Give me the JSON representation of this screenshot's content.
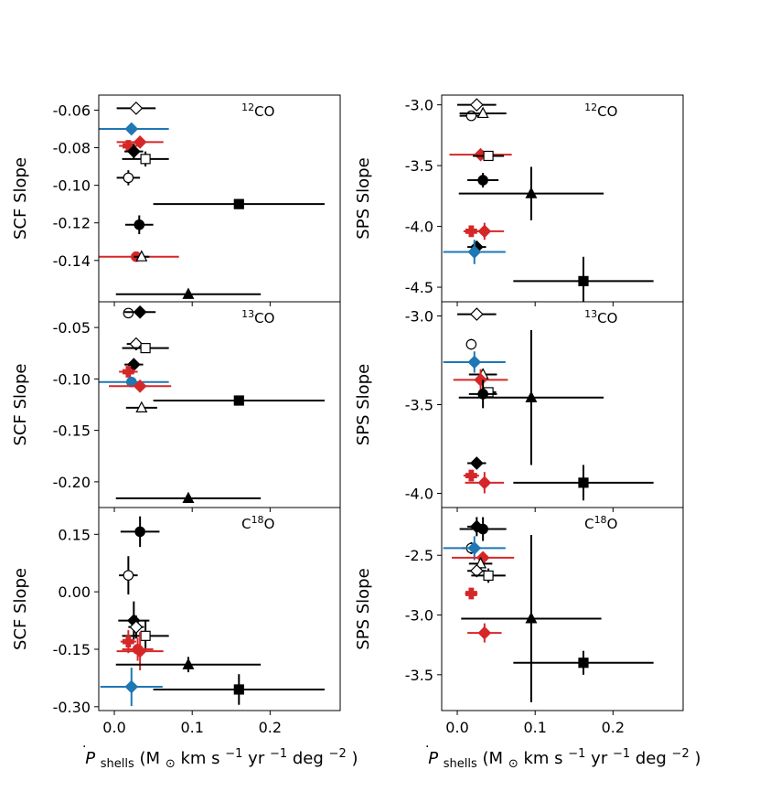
{
  "figure": {
    "xlabel": "Ṗshells (M⊙ km s⁻¹ yr⁻¹ deg⁻²)",
    "xlabel_main": "P",
    "xlabel_sub": "shells",
    "xlabel_units": " (M",
    "xlabel_sun": "⊙",
    "xlabel_rest1": " km s",
    "xlabel_rest2": " yr",
    "xlabel_rest3": " deg",
    "xlabel_exp_neg1a": "−1",
    "xlabel_exp_neg1b": "−1",
    "xlabel_exp_neg2": "−2",
    "xlabel_close": ")",
    "xlim": [
      -0.02,
      0.29
    ],
    "xticks": [
      0.0,
      0.1,
      0.2
    ],
    "xtick_labels": [
      "0.0",
      "0.1",
      "0.2"
    ]
  },
  "colors": {
    "black": "#000000",
    "blue": "#1f77b4",
    "red": "#d62728"
  },
  "chart_data": [
    {
      "type": "scatter",
      "id": "scf-12co",
      "column": 0,
      "row": 0,
      "ylabel": "SCF Slope",
      "title_sup": "12",
      "title_main": "CO",
      "ylim": [
        -0.162,
        -0.052
      ],
      "yticks": [
        -0.06,
        -0.08,
        -0.1,
        -0.12,
        -0.14
      ],
      "ytick_labels": [
        "-0.06",
        "-0.08",
        "-0.10",
        "-0.12",
        "-0.14"
      ],
      "points": [
        {
          "x": 0.028,
          "y": -0.059,
          "xerr": 0.025,
          "yerr": 0,
          "marker": "diamond",
          "filled": false,
          "color": "black"
        },
        {
          "x": 0.022,
          "y": -0.07,
          "xerr": 0.048,
          "yerr": 0,
          "marker": "diamond",
          "filled": true,
          "color": "blue"
        },
        {
          "x": 0.018,
          "y": -0.079,
          "xerr": 0.012,
          "yerr": 0,
          "marker": "plus",
          "filled": true,
          "color": "red"
        },
        {
          "x": 0.033,
          "y": -0.077,
          "xerr": 0.03,
          "yerr": 0,
          "marker": "diamond",
          "filled": true,
          "color": "red"
        },
        {
          "x": 0.025,
          "y": -0.082,
          "xerr": 0.012,
          "yerr": 0.004,
          "marker": "diamond",
          "filled": true,
          "color": "black"
        },
        {
          "x": 0.04,
          "y": -0.086,
          "xerr": 0.03,
          "yerr": 0.004,
          "marker": "square",
          "filled": false,
          "color": "black"
        },
        {
          "x": 0.018,
          "y": -0.096,
          "xerr": 0.015,
          "yerr": 0.004,
          "marker": "circle",
          "filled": false,
          "color": "black"
        },
        {
          "x": 0.032,
          "y": -0.121,
          "xerr": 0.018,
          "yerr": 0.005,
          "marker": "circle",
          "filled": true,
          "color": "black"
        },
        {
          "x": 0.16,
          "y": -0.11,
          "xerr": 0.11,
          "yerr": 0,
          "marker": "square",
          "filled": true,
          "color": "black"
        },
        {
          "x": 0.028,
          "y": -0.138,
          "xerr": 0.055,
          "yerr": 0,
          "marker": "circle",
          "filled": true,
          "color": "red"
        },
        {
          "x": 0.035,
          "y": -0.138,
          "xerr": 0.01,
          "yerr": 0,
          "marker": "triangle",
          "filled": false,
          "color": "black"
        },
        {
          "x": 0.095,
          "y": -0.158,
          "xerr": 0.093,
          "yerr": 0,
          "marker": "triangle",
          "filled": true,
          "color": "black"
        }
      ]
    },
    {
      "type": "scatter",
      "id": "scf-13co",
      "column": 0,
      "row": 1,
      "ylabel": "SCF Slope",
      "title_sup": "13",
      "title_main": "CO",
      "ylim": [
        -0.225,
        -0.025
      ],
      "yticks": [
        -0.05,
        -0.1,
        -0.15,
        -0.2
      ],
      "ytick_labels": [
        "-0.05",
        "-0.10",
        "-0.15",
        "-0.20"
      ],
      "points": [
        {
          "x": 0.018,
          "y": -0.036,
          "xerr": 0.006,
          "yerr": 0,
          "marker": "circle",
          "filled": false,
          "color": "black"
        },
        {
          "x": 0.033,
          "y": -0.035,
          "xerr": 0.02,
          "yerr": 0.003,
          "marker": "diamond",
          "filled": true,
          "color": "black"
        },
        {
          "x": 0.028,
          "y": -0.066,
          "xerr": 0.012,
          "yerr": 0,
          "marker": "diamond",
          "filled": false,
          "color": "black"
        },
        {
          "x": 0.04,
          "y": -0.07,
          "xerr": 0.03,
          "yerr": 0,
          "marker": "square",
          "filled": false,
          "color": "black"
        },
        {
          "x": 0.025,
          "y": -0.086,
          "xerr": 0.012,
          "yerr": 0.004,
          "marker": "diamond",
          "filled": true,
          "color": "black"
        },
        {
          "x": 0.018,
          "y": -0.093,
          "xerr": 0.012,
          "yerr": 0.004,
          "marker": "plus",
          "filled": true,
          "color": "red"
        },
        {
          "x": 0.022,
          "y": -0.103,
          "xerr": 0.048,
          "yerr": 0.004,
          "marker": "circle",
          "filled": true,
          "color": "blue"
        },
        {
          "x": 0.033,
          "y": -0.107,
          "xerr": 0.04,
          "yerr": 0,
          "marker": "diamond",
          "filled": true,
          "color": "red"
        },
        {
          "x": 0.035,
          "y": -0.128,
          "xerr": 0.02,
          "yerr": 0,
          "marker": "triangle",
          "filled": false,
          "color": "black"
        },
        {
          "x": 0.16,
          "y": -0.121,
          "xerr": 0.11,
          "yerr": 0,
          "marker": "square",
          "filled": true,
          "color": "black"
        },
        {
          "x": 0.095,
          "y": -0.216,
          "xerr": 0.093,
          "yerr": 0,
          "marker": "triangle",
          "filled": true,
          "color": "black"
        }
      ]
    },
    {
      "type": "scatter",
      "id": "scf-c18o",
      "column": 0,
      "row": 2,
      "ylabel": "SCF Slope",
      "title_pre": "C",
      "title_sup": "18",
      "title_main": "O",
      "ylim": [
        -0.31,
        0.22
      ],
      "yticks": [
        0.15,
        0.0,
        -0.15,
        -0.3
      ],
      "ytick_labels": [
        "0.15",
        "0.00",
        "-0.15",
        "-0.30"
      ],
      "points": [
        {
          "x": 0.033,
          "y": 0.157,
          "xerr": 0.025,
          "yerr": 0.04,
          "marker": "circle",
          "filled": true,
          "color": "black"
        },
        {
          "x": 0.018,
          "y": 0.043,
          "xerr": 0.012,
          "yerr": 0.05,
          "marker": "circle",
          "filled": false,
          "color": "black"
        },
        {
          "x": 0.025,
          "y": -0.075,
          "xerr": 0.02,
          "yerr": 0.05,
          "marker": "diamond",
          "filled": true,
          "color": "black"
        },
        {
          "x": 0.028,
          "y": -0.092,
          "xerr": 0.01,
          "yerr": 0.03,
          "marker": "diamond",
          "filled": false,
          "color": "black"
        },
        {
          "x": 0.04,
          "y": -0.115,
          "xerr": 0.03,
          "yerr": 0.04,
          "marker": "square",
          "filled": false,
          "color": "black"
        },
        {
          "x": 0.018,
          "y": -0.13,
          "xerr": 0.01,
          "yerr": 0.03,
          "marker": "plus",
          "filled": true,
          "color": "red"
        },
        {
          "x": 0.033,
          "y": -0.155,
          "xerr": 0.03,
          "yerr": 0.05,
          "marker": "diamond",
          "filled": true,
          "color": "red"
        },
        {
          "x": 0.03,
          "y": -0.15,
          "xerr": 0.02,
          "yerr": 0.03,
          "marker": "circle",
          "filled": true,
          "color": "red"
        },
        {
          "x": 0.095,
          "y": -0.19,
          "xerr": 0.093,
          "yerr": 0.02,
          "marker": "triangle",
          "filled": true,
          "color": "black"
        },
        {
          "x": 0.022,
          "y": -0.248,
          "xerr": 0.04,
          "yerr": 0.05,
          "marker": "diamond",
          "filled": true,
          "color": "blue"
        },
        {
          "x": 0.16,
          "y": -0.255,
          "xerr": 0.11,
          "yerr": 0.04,
          "marker": "square",
          "filled": true,
          "color": "black"
        }
      ]
    },
    {
      "type": "scatter",
      "id": "sps-12co",
      "column": 1,
      "row": 0,
      "ylabel": "SPS Slope",
      "title_sup": "12",
      "title_main": "CO",
      "ylim": [
        -4.62,
        -2.92
      ],
      "yticks": [
        -3.0,
        -3.5,
        -4.0,
        -4.5
      ],
      "ytick_labels": [
        "-3.0",
        "-3.5",
        "-4.0",
        "-4.5"
      ],
      "points": [
        {
          "x": 0.025,
          "y": -3.0,
          "xerr": 0.025,
          "yerr": 0,
          "marker": "diamond",
          "filled": false,
          "color": "black"
        },
        {
          "x": 0.018,
          "y": -3.09,
          "xerr": 0.015,
          "yerr": 0,
          "marker": "circle",
          "filled": false,
          "color": "black"
        },
        {
          "x": 0.033,
          "y": -3.07,
          "xerr": 0.03,
          "yerr": 0,
          "marker": "triangle",
          "filled": false,
          "color": "black"
        },
        {
          "x": 0.03,
          "y": -3.41,
          "xerr": 0.04,
          "yerr": 0.03,
          "marker": "diamond",
          "filled": true,
          "color": "red"
        },
        {
          "x": 0.04,
          "y": -3.42,
          "xerr": 0.02,
          "yerr": 0,
          "marker": "square",
          "filled": false,
          "color": "black"
        },
        {
          "x": 0.033,
          "y": -3.62,
          "xerr": 0.02,
          "yerr": 0.06,
          "marker": "circle",
          "filled": true,
          "color": "black"
        },
        {
          "x": 0.095,
          "y": -3.73,
          "xerr": 0.093,
          "yerr": 0.22,
          "marker": "triangle",
          "filled": true,
          "color": "black"
        },
        {
          "x": 0.018,
          "y": -4.04,
          "xerr": 0.01,
          "yerr": 0.04,
          "marker": "plus",
          "filled": true,
          "color": "red"
        },
        {
          "x": 0.035,
          "y": -4.04,
          "xerr": 0.025,
          "yerr": 0.07,
          "marker": "diamond",
          "filled": true,
          "color": "red"
        },
        {
          "x": 0.025,
          "y": -4.17,
          "xerr": 0.012,
          "yerr": 0.05,
          "marker": "diamond",
          "filled": true,
          "color": "black"
        },
        {
          "x": 0.022,
          "y": -4.21,
          "xerr": 0.04,
          "yerr": 0.1,
          "marker": "diamond",
          "filled": true,
          "color": "blue"
        },
        {
          "x": 0.162,
          "y": -4.45,
          "xerr": 0.09,
          "yerr": 0.2,
          "marker": "square",
          "filled": true,
          "color": "black"
        }
      ]
    },
    {
      "type": "scatter",
      "id": "sps-13co",
      "column": 1,
      "row": 1,
      "ylabel": "SPS Slope",
      "title_sup": "13",
      "title_main": "CO",
      "ylim": [
        -4.08,
        -2.92
      ],
      "yticks": [
        -3.0,
        -3.5,
        -4.0
      ],
      "ytick_labels": [
        "-3.0",
        "-3.5",
        "-4.0"
      ],
      "points": [
        {
          "x": 0.025,
          "y": -2.99,
          "xerr": 0.025,
          "yerr": 0,
          "marker": "diamond",
          "filled": false,
          "color": "black"
        },
        {
          "x": 0.018,
          "y": -3.16,
          "xerr": 0.006,
          "yerr": 0.03,
          "marker": "circle",
          "filled": false,
          "color": "black"
        },
        {
          "x": 0.022,
          "y": -3.26,
          "xerr": 0.04,
          "yerr": 0.06,
          "marker": "diamond",
          "filled": true,
          "color": "blue"
        },
        {
          "x": 0.033,
          "y": -3.33,
          "xerr": 0.018,
          "yerr": 0.03,
          "marker": "triangle",
          "filled": false,
          "color": "black"
        },
        {
          "x": 0.03,
          "y": -3.36,
          "xerr": 0.035,
          "yerr": 0.06,
          "marker": "diamond",
          "filled": true,
          "color": "red"
        },
        {
          "x": 0.04,
          "y": -3.43,
          "xerr": 0.01,
          "yerr": 0,
          "marker": "square",
          "filled": false,
          "color": "black"
        },
        {
          "x": 0.033,
          "y": -3.44,
          "xerr": 0.018,
          "yerr": 0.08,
          "marker": "circle",
          "filled": true,
          "color": "black"
        },
        {
          "x": 0.095,
          "y": -3.46,
          "xerr": 0.093,
          "yerr": 0.38,
          "marker": "triangle",
          "filled": true,
          "color": "black"
        },
        {
          "x": 0.025,
          "y": -3.83,
          "xerr": 0.012,
          "yerr": 0.03,
          "marker": "diamond",
          "filled": true,
          "color": "black"
        },
        {
          "x": 0.018,
          "y": -3.9,
          "xerr": 0.01,
          "yerr": 0.03,
          "marker": "plus",
          "filled": true,
          "color": "red"
        },
        {
          "x": 0.035,
          "y": -3.94,
          "xerr": 0.025,
          "yerr": 0.06,
          "marker": "diamond",
          "filled": true,
          "color": "red"
        },
        {
          "x": 0.162,
          "y": -3.94,
          "xerr": 0.09,
          "yerr": 0.1,
          "marker": "square",
          "filled": true,
          "color": "black"
        }
      ]
    },
    {
      "type": "scatter",
      "id": "sps-c18o",
      "column": 1,
      "row": 2,
      "ylabel": "SPS Slope",
      "title_pre": "C",
      "title_sup": "18",
      "title_main": "O",
      "ylim": [
        -3.8,
        -2.1
      ],
      "yticks": [
        -2.5,
        -3.0,
        -3.5
      ],
      "ytick_labels": [
        "-2.5",
        "-3.0",
        "-3.5"
      ],
      "points": [
        {
          "x": 0.025,
          "y": -2.26,
          "xerr": 0.012,
          "yerr": 0.08,
          "marker": "diamond",
          "filled": true,
          "color": "black"
        },
        {
          "x": 0.033,
          "y": -2.28,
          "xerr": 0.03,
          "yerr": 0.1,
          "marker": "circle",
          "filled": true,
          "color": "black"
        },
        {
          "x": 0.018,
          "y": -2.44,
          "xerr": 0.012,
          "yerr": 0.05,
          "marker": "circle",
          "filled": false,
          "color": "black"
        },
        {
          "x": 0.022,
          "y": -2.44,
          "xerr": 0.04,
          "yerr": 0.1,
          "marker": "diamond",
          "filled": true,
          "color": "blue"
        },
        {
          "x": 0.033,
          "y": -2.52,
          "xerr": 0.04,
          "yerr": 0.04,
          "marker": "diamond",
          "filled": true,
          "color": "red"
        },
        {
          "x": 0.03,
          "y": -2.57,
          "xerr": 0.015,
          "yerr": 0.05,
          "marker": "triangle",
          "filled": false,
          "color": "black"
        },
        {
          "x": 0.025,
          "y": -2.63,
          "xerr": 0.012,
          "yerr": 0.04,
          "marker": "diamond",
          "filled": false,
          "color": "black"
        },
        {
          "x": 0.04,
          "y": -2.67,
          "xerr": 0.022,
          "yerr": 0.06,
          "marker": "square",
          "filled": false,
          "color": "black"
        },
        {
          "x": 0.018,
          "y": -2.82,
          "xerr": 0.008,
          "yerr": 0.04,
          "marker": "plus",
          "filled": true,
          "color": "red"
        },
        {
          "x": 0.095,
          "y": -3.03,
          "xerr": 0.09,
          "yerr": 0.7,
          "marker": "triangle",
          "filled": true,
          "color": "black"
        },
        {
          "x": 0.035,
          "y": -3.15,
          "xerr": 0.022,
          "yerr": 0.08,
          "marker": "diamond",
          "filled": true,
          "color": "red"
        },
        {
          "x": 0.162,
          "y": -3.4,
          "xerr": 0.09,
          "yerr": 0.1,
          "marker": "square",
          "filled": true,
          "color": "black"
        }
      ]
    }
  ]
}
